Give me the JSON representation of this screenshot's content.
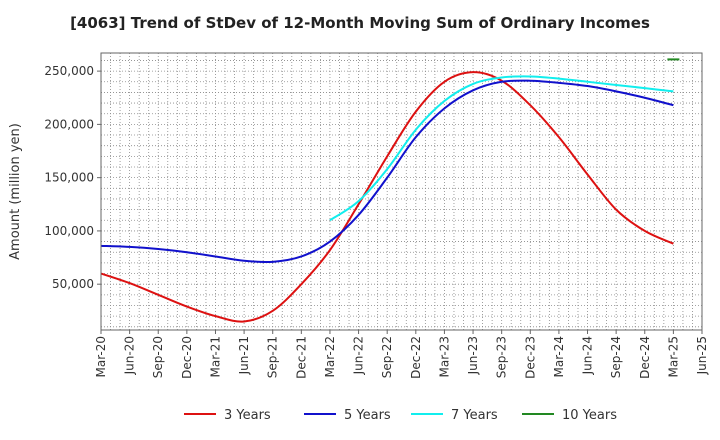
{
  "chart_data": {
    "type": "line",
    "title": "[4063]  Trend of StDev of 12-Month Moving Sum of Ordinary Incomes",
    "xlabel": "",
    "ylabel": "Amount (million yen)",
    "ylim": [
      7000,
      267000
    ],
    "yticks": [
      50000,
      100000,
      150000,
      200000,
      250000
    ],
    "ytick_labels": [
      "50,000",
      "100,000",
      "150,000",
      "200,000",
      "250,000"
    ],
    "xticks": [
      "Mar-20",
      "Jun-20",
      "Sep-20",
      "Dec-20",
      "Mar-21",
      "Jun-21",
      "Sep-21",
      "Dec-21",
      "Mar-22",
      "Jun-22",
      "Sep-22",
      "Dec-22",
      "Mar-23",
      "Jun-23",
      "Sep-23",
      "Dec-23",
      "Mar-24",
      "Jun-24",
      "Sep-24",
      "Dec-24",
      "Mar-25",
      "Jun-25"
    ],
    "grid": true,
    "legend_position": "bottom",
    "series": [
      {
        "name": "3 Years",
        "color": "#dd1111",
        "x": [
          "Mar-20",
          "Jun-20",
          "Sep-20",
          "Dec-20",
          "Mar-21",
          "Jun-21",
          "Sep-21",
          "Dec-21",
          "Mar-22",
          "Jun-22",
          "Sep-22",
          "Dec-22",
          "Mar-23",
          "Jun-23",
          "Sep-23",
          "Dec-23",
          "Mar-24",
          "Jun-24",
          "Sep-24",
          "Dec-24",
          "Mar-25"
        ],
        "values": [
          60000,
          51000,
          40000,
          29000,
          20000,
          15000,
          25000,
          50000,
          82000,
          125000,
          170000,
          212000,
          240000,
          249000,
          241000,
          218000,
          188000,
          153000,
          120000,
          100000,
          88000
        ]
      },
      {
        "name": "5 Years",
        "color": "#1111cc",
        "x": [
          "Mar-20",
          "Jun-20",
          "Sep-20",
          "Dec-20",
          "Mar-21",
          "Jun-21",
          "Sep-21",
          "Dec-21",
          "Mar-22",
          "Jun-22",
          "Sep-22",
          "Dec-22",
          "Mar-23",
          "Jun-23",
          "Sep-23",
          "Dec-23",
          "Mar-24",
          "Jun-24",
          "Sep-24",
          "Dec-24",
          "Mar-25"
        ],
        "values": [
          86000,
          85000,
          83000,
          80000,
          76000,
          72000,
          71000,
          76000,
          90000,
          115000,
          150000,
          188000,
          215000,
          232000,
          240000,
          241000,
          239000,
          236000,
          231000,
          225000,
          218000
        ]
      },
      {
        "name": "7 Years",
        "color": "#11eeee",
        "x": [
          "Mar-22",
          "Jun-22",
          "Sep-22",
          "Dec-22",
          "Mar-23",
          "Jun-23",
          "Sep-23",
          "Dec-23",
          "Mar-24",
          "Jun-24",
          "Sep-24",
          "Dec-24",
          "Mar-25"
        ],
        "values": [
          110000,
          128000,
          158000,
          195000,
          222000,
          238000,
          244000,
          245000,
          243000,
          240000,
          237000,
          234000,
          231000
        ]
      },
      {
        "name": "10 Years",
        "color": "#228822",
        "x": [
          "Mar-25"
        ],
        "values": [
          261000
        ]
      }
    ]
  }
}
